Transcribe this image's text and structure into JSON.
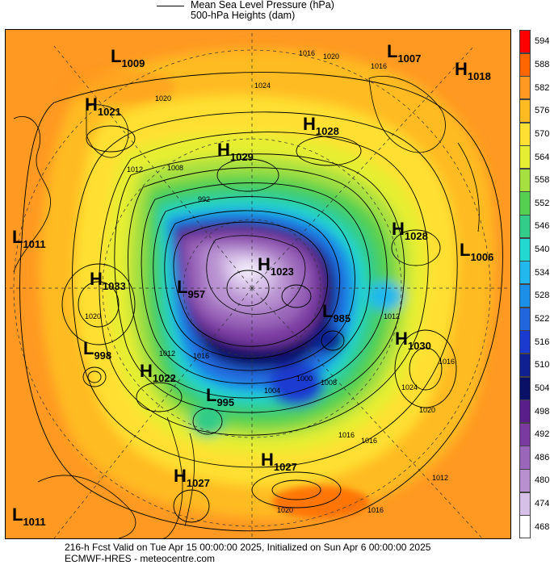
{
  "legend": {
    "mslp": "Mean Sea Level Pressure (hPa)",
    "heights": "500-hPa Heights (dam)"
  },
  "scale": {
    "ticks": [
      "594",
      "588",
      "582",
      "576",
      "570",
      "564",
      "558",
      "552",
      "546",
      "540",
      "534",
      "528",
      "522",
      "516",
      "510",
      "504",
      "498",
      "492",
      "486",
      "480",
      "474",
      "468"
    ],
    "colors": [
      "#ff0000",
      "#ff6600",
      "#ff9922",
      "#ffbb22",
      "#ffe033",
      "#e6ee33",
      "#a6e040",
      "#55d050",
      "#33cc88",
      "#22d8d0",
      "#22b8ee",
      "#1c90e8",
      "#2266dd",
      "#1a3ad0",
      "#102090",
      "#0a1066",
      "#5a1e8a",
      "#7a3aa0",
      "#9a66ba",
      "#b890d0",
      "#d6c0e8",
      "#ffffff"
    ]
  },
  "systems": [
    {
      "type": "L",
      "value": "1009"
    },
    {
      "type": "L",
      "value": "1007"
    },
    {
      "type": "H",
      "value": "1018"
    },
    {
      "type": "H",
      "value": "1021"
    },
    {
      "type": "H",
      "value": "1028"
    },
    {
      "type": "H",
      "value": "1029"
    },
    {
      "type": "H",
      "value": "1028"
    },
    {
      "type": "L",
      "value": "1011"
    },
    {
      "type": "H",
      "value": "1033"
    },
    {
      "type": "L",
      "value": "957"
    },
    {
      "type": "H",
      "value": "1023"
    },
    {
      "type": "L",
      "value": "985"
    },
    {
      "type": "L",
      "value": "1006"
    },
    {
      "type": "L",
      "value": "998"
    },
    {
      "type": "H",
      "value": "1022"
    },
    {
      "type": "L",
      "value": "995"
    },
    {
      "type": "H",
      "value": "1030"
    },
    {
      "type": "H",
      "value": "1027"
    },
    {
      "type": "H",
      "value": "1027"
    },
    {
      "type": "L",
      "value": "1011"
    }
  ],
  "isobar_labels": [
    "1016",
    "1020",
    "1024",
    "1012",
    "1008",
    "992",
    "1020",
    "1016",
    "1020",
    "1012",
    "1016",
    "1012",
    "1024",
    "1020",
    "1016",
    "1004",
    "1008",
    "1000",
    "1016",
    "1016",
    "1020",
    "1016",
    "1012"
  ],
  "footer": {
    "line1": "216-h Fcst Valid on Tue Apr 15 00:00:00 2025, Initialized on Sun Apr  6 00:00:00 2025",
    "line2": "ECMWF-HRES  - meteocentre.com"
  }
}
